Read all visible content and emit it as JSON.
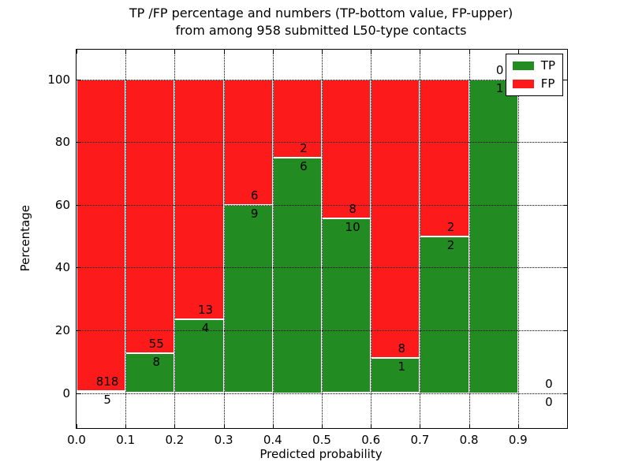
{
  "title": {
    "line1": "TP /FP percentage and numbers (TP-bottom value, FP-upper)",
    "line2": "from among 958 submitted L50-type contacts"
  },
  "axes": {
    "xlabel": "Predicted probability",
    "ylabel": "Percentage",
    "x_tick_labels": [
      "0.0",
      "0.1",
      "0.2",
      "0.3",
      "0.4",
      "0.5",
      "0.6",
      "0.7",
      "0.8",
      "0.9"
    ],
    "y_tick_labels": [
      "0",
      "20",
      "40",
      "60",
      "80",
      "100"
    ],
    "y_tick_values": [
      0,
      20,
      40,
      60,
      80,
      100
    ],
    "x_range": [
      0.0,
      1.0
    ],
    "y_value_range": [
      0,
      100
    ],
    "grid": "dotted"
  },
  "legend": {
    "position": "upper right",
    "items": [
      {
        "label": "TP",
        "color": "#228b22"
      },
      {
        "label": "FP",
        "color": "#fc1a1a"
      }
    ]
  },
  "chart_data": {
    "type": "bar",
    "stacked": true,
    "title": "TP /FP percentage and numbers (TP-bottom value, FP-upper) from among 958 submitted L50-type contacts",
    "xlabel": "Predicted probability",
    "ylabel": "Percentage",
    "ylim": [
      0,
      100
    ],
    "total_contacts": 958,
    "bins": [
      [
        0.0,
        0.1
      ],
      [
        0.1,
        0.2
      ],
      [
        0.2,
        0.3
      ],
      [
        0.3,
        0.4
      ],
      [
        0.4,
        0.5
      ],
      [
        0.5,
        0.6
      ],
      [
        0.6,
        0.7
      ],
      [
        0.7,
        0.8
      ],
      [
        0.8,
        0.9
      ],
      [
        0.9,
        1.0
      ]
    ],
    "series": [
      {
        "name": "TP",
        "color": "#228b22",
        "counts": [
          5,
          8,
          4,
          9,
          6,
          10,
          1,
          2,
          1,
          0
        ]
      },
      {
        "name": "FP",
        "color": "#fc1a1a",
        "counts": [
          818,
          55,
          13,
          6,
          2,
          8,
          8,
          2,
          0,
          0
        ]
      }
    ],
    "tp_percent_of_bin": [
      0.61,
      12.7,
      23.53,
      60.0,
      75.0,
      55.56,
      11.11,
      50.0,
      100.0,
      null
    ],
    "note": "TP count printed below the TP/FP boundary, FP count printed above it; 0.9-1.0 bin empty (0/0)"
  }
}
